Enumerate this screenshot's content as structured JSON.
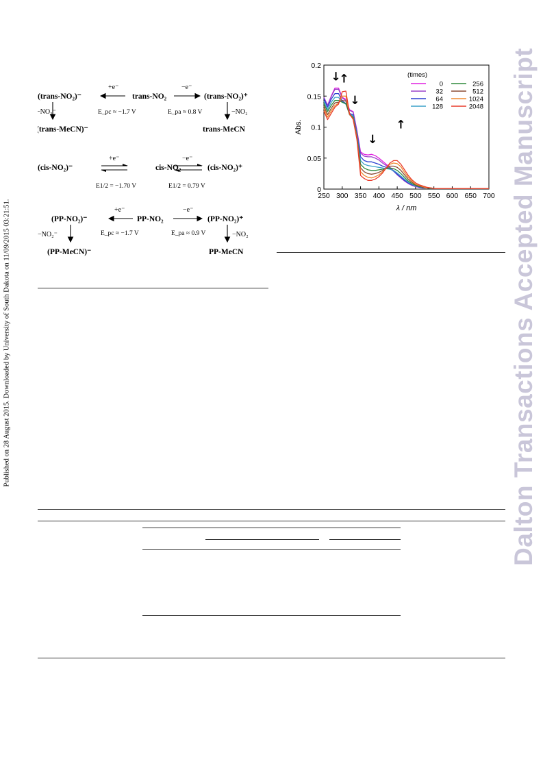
{
  "side_note": "Published on 28 August 2015. Downloaded by University of South Dakota on 11/09/2015 03:21:51.",
  "watermark": "Dalton Transactions Accepted Manuscript",
  "scheme": {
    "trans": {
      "left": "(trans-NO₂)⁻",
      "center": "trans-NO₂",
      "right": "(trans-NO₂)⁺",
      "red_label": "+e⁻",
      "ox_label": "−e⁻",
      "left_loss": "−NO₂⁻",
      "right_loss": "−NO₂",
      "red_pot": "E_pc ≈ −1.7 V",
      "ox_pot": "E_pa ≈ 0.8 V",
      "left_product": "(trans-MeCN)⁻",
      "right_product": "trans-MeCN"
    },
    "cis": {
      "left": "(cis-NO₂)⁻",
      "center": "cis-NO₂",
      "right": "(cis-NO₂)⁺",
      "red_label": "+e⁻",
      "ox_label": "−e⁻",
      "red_pot": "E1/2 = −1.70 V",
      "ox_pot": "E1/2 = 0.79 V"
    },
    "pp": {
      "left": "(PP-NO₂)⁻",
      "center": "PP-NO₂",
      "right": "(PP-NO₂)⁺",
      "red_label": "+e⁻",
      "ox_label": "−e⁻",
      "left_loss": "−NO₂⁻",
      "right_loss": "−NO₂",
      "red_pot": "E_pc ≈ −1.7 V",
      "ox_pot": "E_pa ≈ 0.9 V",
      "left_product": "(PP-MeCN)⁻",
      "right_product": "PP-MeCN"
    }
  },
  "chart_data": {
    "type": "line",
    "xlabel": "λ / nm",
    "ylabel": "Abs.",
    "xlim": [
      250,
      700
    ],
    "ylim": [
      0,
      0.2
    ],
    "xticks": [
      250,
      300,
      350,
      400,
      450,
      500,
      550,
      600,
      650,
      700
    ],
    "yticks": [
      0,
      0.05,
      0.1,
      0.15,
      0.2
    ],
    "ytick_labels": [
      "0",
      "0.05",
      "0.1",
      "0.15",
      "0.2"
    ],
    "legend_title": "(times)",
    "legend_placement": "top-right",
    "x": [
      250,
      260,
      270,
      280,
      290,
      300,
      310,
      320,
      330,
      340,
      350,
      360,
      370,
      380,
      390,
      400,
      410,
      420,
      430,
      440,
      450,
      460,
      470,
      480,
      490,
      500,
      510,
      520,
      530,
      540,
      550,
      575,
      600,
      650,
      700
    ],
    "series": [
      {
        "name": "0",
        "color": "#e020e0",
        "values": [
          0.148,
          0.135,
          0.15,
          0.163,
          0.163,
          0.148,
          0.145,
          0.128,
          0.125,
          0.095,
          0.06,
          0.056,
          0.055,
          0.056,
          0.054,
          0.05,
          0.045,
          0.04,
          0.035,
          0.03,
          0.024,
          0.018,
          0.013,
          0.009,
          0.006,
          0.004,
          0.003,
          0.002,
          0.002,
          0.001,
          0.001,
          0.001,
          0.001,
          0.001,
          0.001
        ]
      },
      {
        "name": "32",
        "color": "#9a40c8",
        "values": [
          0.148,
          0.135,
          0.149,
          0.161,
          0.161,
          0.147,
          0.143,
          0.127,
          0.124,
          0.094,
          0.058,
          0.053,
          0.052,
          0.052,
          0.05,
          0.047,
          0.042,
          0.038,
          0.034,
          0.029,
          0.023,
          0.018,
          0.013,
          0.009,
          0.006,
          0.004,
          0.003,
          0.002,
          0.002,
          0.001,
          0.001,
          0.001,
          0.001,
          0.001,
          0.001
        ]
      },
      {
        "name": "64",
        "color": "#2a3fd0",
        "values": [
          0.146,
          0.132,
          0.145,
          0.154,
          0.154,
          0.142,
          0.138,
          0.122,
          0.12,
          0.09,
          0.052,
          0.046,
          0.044,
          0.044,
          0.042,
          0.04,
          0.037,
          0.035,
          0.033,
          0.029,
          0.024,
          0.019,
          0.014,
          0.01,
          0.007,
          0.005,
          0.003,
          0.002,
          0.002,
          0.001,
          0.001,
          0.001,
          0.001,
          0.001,
          0.001
        ]
      },
      {
        "name": "128",
        "color": "#3aa0c8",
        "values": [
          0.142,
          0.128,
          0.14,
          0.148,
          0.148,
          0.14,
          0.137,
          0.121,
          0.118,
          0.088,
          0.046,
          0.04,
          0.038,
          0.037,
          0.036,
          0.035,
          0.034,
          0.033,
          0.032,
          0.03,
          0.026,
          0.021,
          0.016,
          0.011,
          0.008,
          0.005,
          0.004,
          0.003,
          0.002,
          0.001,
          0.001,
          0.001,
          0.001,
          0.001,
          0.001
        ]
      },
      {
        "name": "256",
        "color": "#2e8a3c",
        "values": [
          0.138,
          0.125,
          0.135,
          0.143,
          0.143,
          0.14,
          0.138,
          0.12,
          0.116,
          0.086,
          0.04,
          0.034,
          0.031,
          0.03,
          0.03,
          0.031,
          0.032,
          0.033,
          0.034,
          0.033,
          0.03,
          0.025,
          0.019,
          0.013,
          0.009,
          0.006,
          0.004,
          0.003,
          0.002,
          0.001,
          0.001,
          0.001,
          0.001,
          0.001,
          0.001
        ]
      },
      {
        "name": "512",
        "color": "#8a4a32",
        "values": [
          0.134,
          0.12,
          0.13,
          0.139,
          0.14,
          0.143,
          0.142,
          0.12,
          0.114,
          0.084,
          0.034,
          0.028,
          0.025,
          0.024,
          0.025,
          0.027,
          0.03,
          0.034,
          0.037,
          0.037,
          0.035,
          0.03,
          0.023,
          0.016,
          0.011,
          0.007,
          0.005,
          0.003,
          0.002,
          0.002,
          0.001,
          0.001,
          0.001,
          0.001,
          0.001
        ]
      },
      {
        "name": "1024",
        "color": "#f08a30",
        "values": [
          0.13,
          0.116,
          0.126,
          0.135,
          0.138,
          0.15,
          0.15,
          0.121,
          0.113,
          0.082,
          0.028,
          0.022,
          0.019,
          0.018,
          0.02,
          0.023,
          0.028,
          0.034,
          0.04,
          0.042,
          0.041,
          0.036,
          0.027,
          0.019,
          0.013,
          0.008,
          0.006,
          0.004,
          0.002,
          0.002,
          0.001,
          0.001,
          0.001,
          0.001,
          0.001
        ]
      },
      {
        "name": "2048",
        "color": "#e83a2a",
        "values": [
          0.126,
          0.112,
          0.122,
          0.132,
          0.137,
          0.157,
          0.158,
          0.122,
          0.112,
          0.08,
          0.022,
          0.017,
          0.014,
          0.014,
          0.016,
          0.02,
          0.026,
          0.034,
          0.042,
          0.046,
          0.046,
          0.04,
          0.031,
          0.022,
          0.015,
          0.01,
          0.007,
          0.005,
          0.003,
          0.002,
          0.001,
          0.001,
          0.001,
          0.001,
          0.001
        ]
      }
    ],
    "annotations": [
      {
        "text": "↓",
        "x": 283,
        "y": 0.175
      },
      {
        "text": "↑",
        "x": 305,
        "y": 0.172
      },
      {
        "text": "↓",
        "x": 335,
        "y": 0.137
      },
      {
        "text": "↓",
        "x": 383,
        "y": 0.074
      },
      {
        "text": "↑",
        "x": 460,
        "y": 0.098
      }
    ]
  }
}
